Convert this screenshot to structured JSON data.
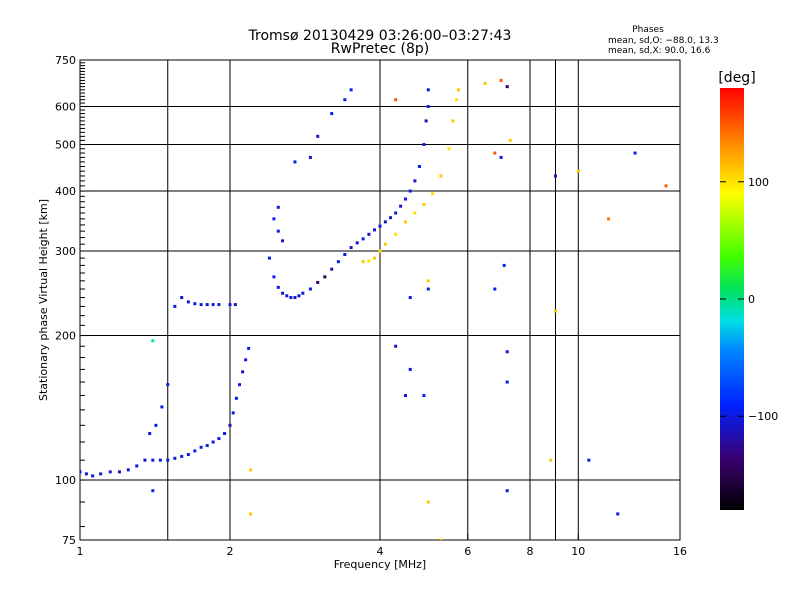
{
  "header": {
    "title_line1": "Tromsø 20130429 03:26:00–03:27:43",
    "title_line2": "RwPretec (8p)",
    "phase_title": "Phases",
    "phase_o": "mean, sd,O: −88.0, 13.3",
    "phase_x": "mean, sd,X:  90.0, 16.6"
  },
  "colorbar": {
    "unit_label": "[deg]",
    "ticks": [
      {
        "value": 100,
        "label": "100"
      },
      {
        "value": 0,
        "label": "0"
      },
      {
        "value": -100,
        "label": "−100"
      }
    ],
    "range": [
      -180,
      180
    ]
  },
  "chart_data": {
    "type": "scatter",
    "xlabel": "Frequency [MHz]",
    "ylabel": "Stationary phase Virtual Height [km]",
    "x_scale": "log",
    "y_scale": "log",
    "xlim": [
      1,
      16
    ],
    "ylim": [
      75,
      750
    ],
    "x_ticks": [
      {
        "value": 1,
        "label": "1"
      },
      {
        "value": 2,
        "label": "2"
      },
      {
        "value": 4,
        "label": "4"
      },
      {
        "value": 6,
        "label": "6"
      },
      {
        "value": 8,
        "label": "8"
      },
      {
        "value": 10,
        "label": "10"
      },
      {
        "value": 16,
        "label": "16"
      }
    ],
    "y_ticks": [
      {
        "value": 75,
        "label": "75"
      },
      {
        "value": 100,
        "label": "100"
      },
      {
        "value": 200,
        "label": "200"
      },
      {
        "value": 300,
        "label": "300"
      },
      {
        "value": 400,
        "label": "400"
      },
      {
        "value": 500,
        "label": "500"
      },
      {
        "value": 600,
        "label": "600"
      },
      {
        "value": 750,
        "label": "750"
      }
    ],
    "x_grid": [
      1.5,
      2,
      4,
      6,
      8,
      9,
      10
    ],
    "y_grid": [
      100,
      200,
      300,
      400,
      500,
      600,
      750
    ],
    "color_by": "phase [deg]",
    "series": [
      {
        "points": [
          [
            1.0,
            104,
            -100
          ],
          [
            1.03,
            103,
            -110
          ],
          [
            1.06,
            102,
            -100
          ],
          [
            1.1,
            103,
            -105
          ],
          [
            1.15,
            104,
            -100
          ],
          [
            1.2,
            104,
            -110
          ],
          [
            1.25,
            105,
            -100
          ],
          [
            1.3,
            107,
            -100
          ],
          [
            1.35,
            110,
            -110
          ],
          [
            1.4,
            110,
            -100
          ],
          [
            1.45,
            110,
            -105
          ],
          [
            1.5,
            110,
            -100
          ],
          [
            1.55,
            111,
            -100
          ],
          [
            1.6,
            112,
            -100
          ],
          [
            1.65,
            113,
            -110
          ],
          [
            1.7,
            115,
            -100
          ],
          [
            1.75,
            117,
            -100
          ],
          [
            1.8,
            118,
            -100
          ],
          [
            1.85,
            120,
            -100
          ],
          [
            1.9,
            122,
            -100
          ],
          [
            1.95,
            125,
            -100
          ],
          [
            2.0,
            130,
            -110
          ],
          [
            2.03,
            138,
            -100
          ],
          [
            2.06,
            148,
            -100
          ],
          [
            2.09,
            158,
            -100
          ],
          [
            2.12,
            168,
            -110
          ],
          [
            2.15,
            178,
            -100
          ],
          [
            2.18,
            188,
            -100
          ]
        ]
      },
      {
        "points": [
          [
            1.38,
            125,
            -100
          ],
          [
            1.42,
            130,
            -100
          ],
          [
            1.46,
            142,
            -100
          ],
          [
            1.5,
            158,
            -100
          ]
        ]
      },
      {
        "points": [
          [
            1.55,
            230,
            -100
          ],
          [
            1.6,
            240,
            -110
          ],
          [
            1.65,
            235,
            -100
          ],
          [
            1.7,
            233,
            -100
          ],
          [
            1.75,
            232,
            -100
          ],
          [
            1.8,
            232,
            -110
          ],
          [
            1.85,
            232,
            -100
          ],
          [
            1.9,
            232,
            -100
          ],
          [
            2.0,
            232,
            -100
          ],
          [
            2.05,
            232,
            -110
          ]
        ]
      },
      {
        "points": [
          [
            2.4,
            290,
            -100
          ],
          [
            2.45,
            265,
            -100
          ],
          [
            2.5,
            252,
            -100
          ],
          [
            2.55,
            245,
            -110
          ],
          [
            2.6,
            242,
            -100
          ],
          [
            2.65,
            240,
            -100
          ],
          [
            2.7,
            240,
            -110
          ],
          [
            2.75,
            242,
            -100
          ],
          [
            2.8,
            245,
            -100
          ],
          [
            2.9,
            250,
            -100
          ],
          [
            3.0,
            258,
            -140
          ],
          [
            3.1,
            265,
            -150
          ],
          [
            3.2,
            275,
            -110
          ],
          [
            3.3,
            285,
            -100
          ],
          [
            3.4,
            295,
            -100
          ],
          [
            3.5,
            305,
            -110
          ],
          [
            3.6,
            312,
            -100
          ],
          [
            3.7,
            318,
            -100
          ],
          [
            3.8,
            325,
            -110
          ],
          [
            3.9,
            332,
            -100
          ],
          [
            4.0,
            338,
            -100
          ],
          [
            4.1,
            345,
            -110
          ],
          [
            4.2,
            352,
            -100
          ],
          [
            4.3,
            360,
            -100
          ],
          [
            4.4,
            372,
            -110
          ],
          [
            4.5,
            385,
            -100
          ],
          [
            4.6,
            400,
            -100
          ],
          [
            4.7,
            420,
            -110
          ],
          [
            4.8,
            450,
            -100
          ],
          [
            4.9,
            500,
            -100
          ],
          [
            4.95,
            560,
            -110
          ],
          [
            5.0,
            600,
            -100
          ]
        ]
      },
      {
        "points": [
          [
            2.45,
            350,
            -100
          ],
          [
            2.5,
            330,
            -100
          ],
          [
            2.55,
            315,
            -110
          ],
          [
            2.5,
            370,
            -100
          ]
        ]
      },
      {
        "points": [
          [
            2.7,
            460,
            -100
          ],
          [
            2.9,
            470,
            -100
          ],
          [
            3.0,
            520,
            -110
          ],
          [
            3.2,
            580,
            -100
          ],
          [
            3.4,
            620,
            -100
          ],
          [
            3.5,
            650,
            -100
          ]
        ]
      },
      {
        "points": [
          [
            3.7,
            285,
            110
          ],
          [
            3.8,
            286,
            100
          ],
          [
            3.9,
            290,
            110
          ],
          [
            4.0,
            300,
            100
          ],
          [
            4.1,
            310,
            110
          ],
          [
            4.3,
            325,
            100
          ],
          [
            4.5,
            345,
            110
          ],
          [
            4.7,
            360,
            100
          ],
          [
            4.9,
            375,
            110
          ],
          [
            5.1,
            395,
            100
          ],
          [
            5.3,
            430,
            110
          ],
          [
            5.5,
            490,
            100
          ],
          [
            5.6,
            560,
            110
          ],
          [
            5.7,
            620,
            100
          ],
          [
            5.75,
            650,
            110
          ]
        ]
      },
      {
        "points": [
          [
            4.3,
            620,
            150
          ],
          [
            5.0,
            650,
            -100
          ],
          [
            6.5,
            670,
            110
          ],
          [
            7.0,
            680,
            150
          ],
          [
            7.2,
            660,
            -150
          ],
          [
            6.8,
            480,
            150
          ],
          [
            7.0,
            470,
            -100
          ],
          [
            7.3,
            510,
            110
          ],
          [
            9.0,
            430,
            -100
          ],
          [
            10.0,
            440,
            110
          ],
          [
            11.5,
            350,
            140
          ],
          [
            13.0,
            480,
            -100
          ],
          [
            15.0,
            410,
            150
          ],
          [
            8.8,
            110,
            110
          ],
          [
            10.5,
            110,
            -100
          ],
          [
            12.0,
            85,
            -100
          ],
          [
            5.0,
            90,
            110
          ],
          [
            5.3,
            75,
            110
          ],
          [
            7.2,
            95,
            -100
          ],
          [
            7.2,
            185,
            -100
          ],
          [
            7.2,
            160,
            -100
          ],
          [
            7.1,
            280,
            -100
          ],
          [
            6.8,
            250,
            -100
          ],
          [
            9.0,
            225,
            110
          ],
          [
            4.6,
            240,
            -100
          ],
          [
            4.3,
            190,
            -110
          ],
          [
            4.6,
            170,
            -100
          ],
          [
            4.5,
            150,
            -100
          ],
          [
            4.9,
            150,
            -100
          ],
          [
            5.0,
            260,
            110
          ],
          [
            5.0,
            250,
            -100
          ],
          [
            2.2,
            85,
            110
          ],
          [
            1.4,
            195,
            -10
          ],
          [
            1.4,
            95,
            -100
          ],
          [
            2.2,
            105,
            110
          ]
        ]
      }
    ]
  }
}
